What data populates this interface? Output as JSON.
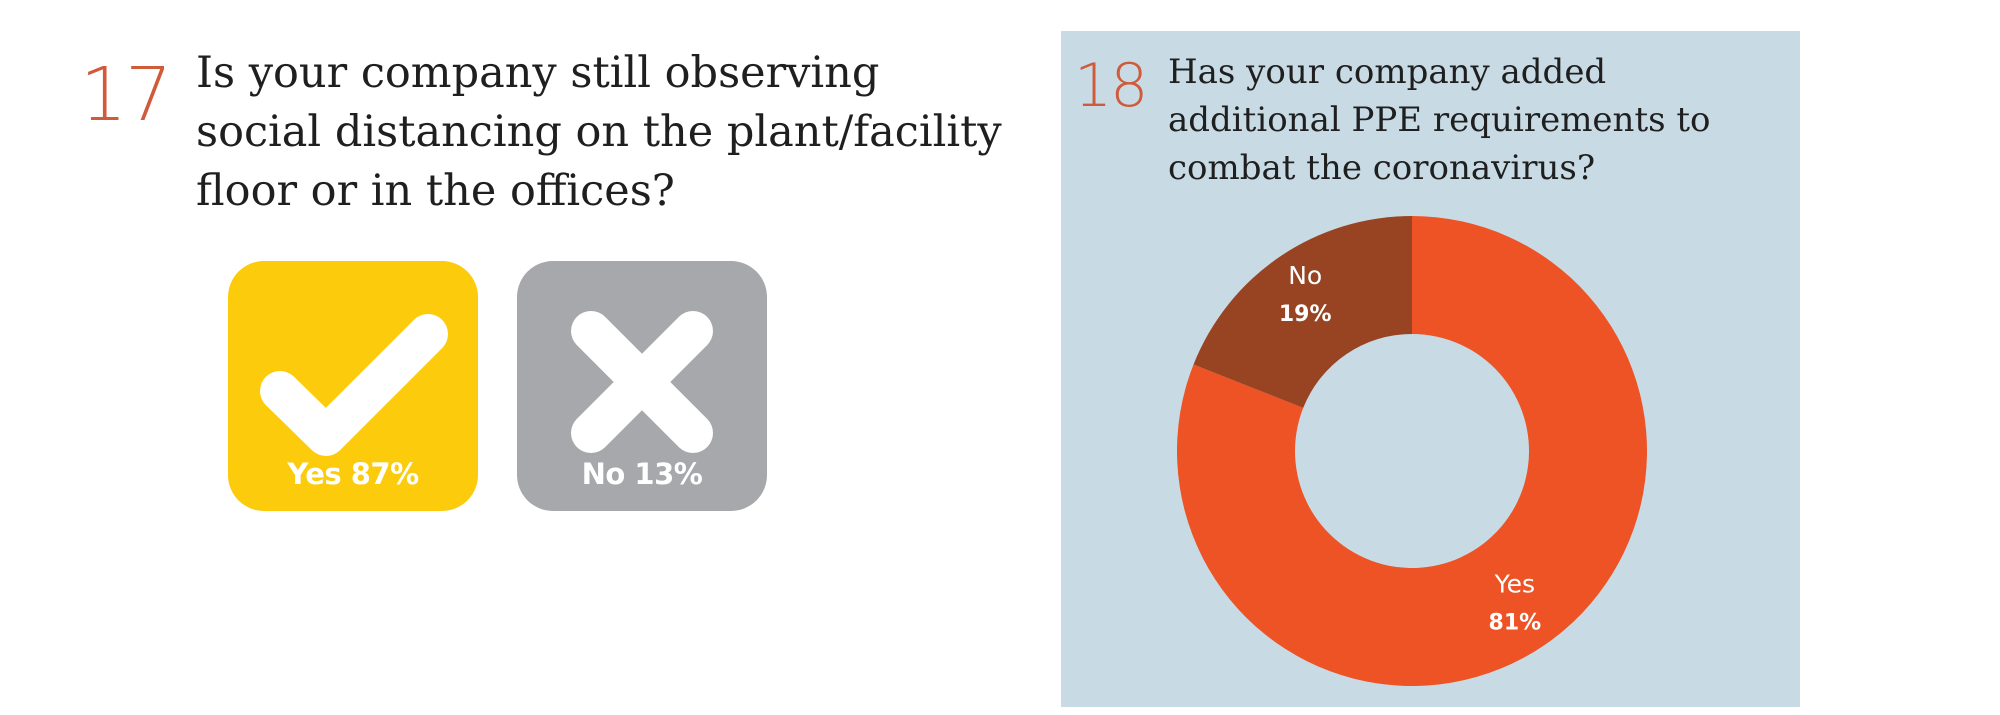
{
  "question17": {
    "number": "17",
    "text": "Is your company still observing social distancing on the plant/facility floor or in the offices?"
  },
  "question18": {
    "number": "18",
    "text": "Has your company added additional PPE requirements to combat the coronavirus?"
  },
  "chart_data": [
    {
      "type": "icon-tiles",
      "categories": [
        "Yes",
        "No"
      ],
      "values": [
        87,
        13
      ],
      "labels": [
        "Yes 87%",
        "No 13%"
      ],
      "colors": [
        "#fccb0b",
        "#a6a8ab"
      ],
      "icons": [
        "checkmark-icon",
        "x-icon"
      ]
    },
    {
      "type": "pie",
      "style": "donut",
      "categories": [
        "Yes",
        "No"
      ],
      "values": [
        81,
        19
      ],
      "value_labels": [
        "81%",
        "19%"
      ],
      "colors": [
        "#ee5326",
        "#984423"
      ],
      "background": "#c8dbe5"
    }
  ]
}
